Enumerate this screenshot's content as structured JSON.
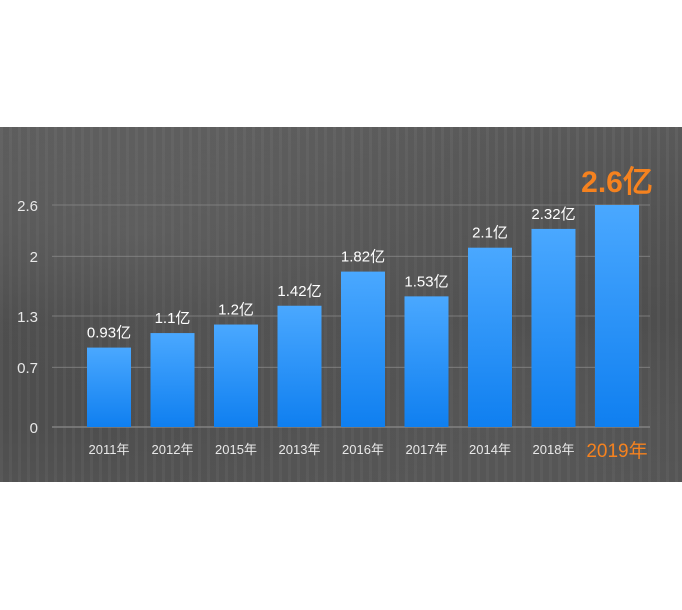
{
  "chart_data": {
    "type": "bar",
    "categories": [
      "2011年",
      "2012年",
      "2015年",
      "2013年",
      "2016年",
      "2017年",
      "2014年",
      "2018年",
      "2019年"
    ],
    "values": [
      0.93,
      1.1,
      1.2,
      1.42,
      1.82,
      1.53,
      2.1,
      2.32,
      2.6
    ],
    "value_labels": [
      "0.93亿",
      "1.1亿",
      "1.2亿",
      "1.42亿",
      "1.82亿",
      "1.53亿",
      "2.1亿",
      "2.32亿",
      "2.6亿"
    ],
    "yticks": [
      0,
      0.7,
      1.3,
      2,
      2.6
    ],
    "ytick_labels": [
      "0",
      "0.7",
      "1.3",
      "2",
      "2.6"
    ],
    "ylim": [
      0,
      2.6
    ],
    "grid": true,
    "highlight_index": 8,
    "colors": {
      "bar_top": "#4aa8ff",
      "bar_bottom": "#0f7ff0",
      "highlight_text": "#f5821f",
      "label_text": "#ffffff",
      "axis_text": "#e8e8e8",
      "grid": "#8a8a8a"
    }
  }
}
